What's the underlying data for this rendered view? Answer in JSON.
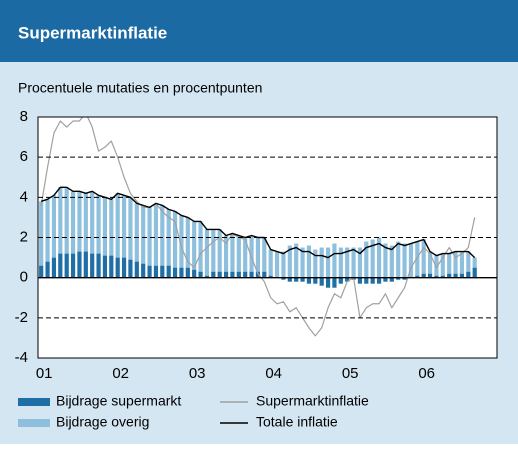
{
  "chart_data": {
    "type": "bar",
    "title": "Supermarktinflatie",
    "subtitle": "Procentuele mutaties en procentpunten",
    "stacked": true,
    "categories": [
      "01",
      null,
      null,
      null,
      null,
      null,
      null,
      null,
      null,
      null,
      null,
      null,
      "02",
      null,
      null,
      null,
      null,
      null,
      null,
      null,
      null,
      null,
      null,
      null,
      "03",
      null,
      null,
      null,
      null,
      null,
      null,
      null,
      null,
      null,
      null,
      null,
      "04",
      null,
      null,
      null,
      null,
      null,
      null,
      null,
      null,
      null,
      null,
      null,
      "05",
      null,
      null,
      null,
      null,
      null,
      null,
      null,
      null,
      null,
      null,
      null,
      "06",
      null,
      null,
      null,
      null,
      null,
      null,
      null,
      null
    ],
    "series": [
      {
        "name": "Bijdrage supermarkt",
        "type": "bar",
        "color": "#1f6ea6",
        "values": [
          0.6,
          0.8,
          1.0,
          1.2,
          1.2,
          1.2,
          1.3,
          1.3,
          1.2,
          1.2,
          1.1,
          1.1,
          1.0,
          1.0,
          0.9,
          0.8,
          0.7,
          0.6,
          0.6,
          0.6,
          0.6,
          0.5,
          0.5,
          0.5,
          0.4,
          0.3,
          0.1,
          0.3,
          0.3,
          0.3,
          0.3,
          0.3,
          0.3,
          0.3,
          0.3,
          0.3,
          0.1,
          0.0,
          -0.1,
          -0.2,
          -0.2,
          -0.2,
          -0.3,
          -0.3,
          -0.4,
          -0.5,
          -0.5,
          -0.3,
          -0.2,
          -0.1,
          -0.3,
          -0.3,
          -0.3,
          -0.3,
          -0.2,
          -0.2,
          -0.1,
          -0.1,
          0.0,
          0.1,
          0.2,
          0.2,
          0.1,
          0.1,
          0.2,
          0.2,
          0.2,
          0.3,
          0.5
        ]
      },
      {
        "name": "Bijdrage overig",
        "type": "bar",
        "color": "#8ec0de",
        "values": [
          3.2,
          3.1,
          3.1,
          3.3,
          3.3,
          3.1,
          3.0,
          2.9,
          3.1,
          2.9,
          2.9,
          2.8,
          3.2,
          3.1,
          3.1,
          2.9,
          2.9,
          2.9,
          3.1,
          3.0,
          2.8,
          2.8,
          2.6,
          2.5,
          2.4,
          2.5,
          2.3,
          2.1,
          2.1,
          1.8,
          1.9,
          1.8,
          1.7,
          1.8,
          1.7,
          1.7,
          1.3,
          1.3,
          1.3,
          1.6,
          1.7,
          1.5,
          1.6,
          1.4,
          1.5,
          1.5,
          1.7,
          1.5,
          1.5,
          1.5,
          1.5,
          1.8,
          1.9,
          2.0,
          1.7,
          1.6,
          1.8,
          1.7,
          1.7,
          1.7,
          1.7,
          1.1,
          1.0,
          1.1,
          1.0,
          1.1,
          1.1,
          1.0,
          0.5
        ]
      },
      {
        "name": "Supermarktinflatie",
        "type": "line",
        "color": "#a0a0a0",
        "values": [
          3.6,
          5.5,
          7.2,
          7.8,
          7.5,
          7.8,
          7.8,
          8.2,
          7.5,
          6.3,
          6.5,
          6.8,
          6.0,
          5.0,
          4.2,
          3.8,
          3.5,
          3.5,
          3.7,
          3.3,
          3.0,
          2.8,
          1.5,
          0.8,
          0.5,
          1.2,
          1.5,
          1.8,
          2.0,
          1.7,
          2.2,
          2.0,
          1.9,
          1.0,
          0.2,
          -0.2,
          -1.0,
          -1.3,
          -1.2,
          -1.7,
          -1.5,
          -2.0,
          -2.5,
          -2.9,
          -2.5,
          -1.5,
          -0.8,
          -1.0,
          -0.2,
          0.0,
          -2.0,
          -1.5,
          -1.3,
          -1.3,
          -0.8,
          -1.5,
          -1.0,
          -0.5,
          0.5,
          1.0,
          1.5,
          1.2,
          0.5,
          1.0,
          1.5,
          1.0,
          1.2,
          1.5,
          3.0
        ]
      },
      {
        "name": "Totale inflatie",
        "type": "line",
        "color": "#000000",
        "values": [
          3.8,
          3.9,
          4.1,
          4.5,
          4.5,
          4.3,
          4.3,
          4.2,
          4.3,
          4.1,
          4.0,
          3.9,
          4.2,
          4.1,
          4.0,
          3.7,
          3.6,
          3.5,
          3.7,
          3.6,
          3.4,
          3.3,
          3.1,
          3.0,
          2.8,
          2.8,
          2.4,
          2.4,
          2.4,
          2.1,
          2.2,
          2.1,
          2.0,
          2.1,
          2.0,
          2.0,
          1.4,
          1.3,
          1.2,
          1.4,
          1.5,
          1.3,
          1.3,
          1.1,
          1.1,
          1.0,
          1.2,
          1.2,
          1.3,
          1.4,
          1.2,
          1.5,
          1.6,
          1.7,
          1.5,
          1.4,
          1.7,
          1.6,
          1.7,
          1.8,
          1.9,
          1.3,
          1.1,
          1.2,
          1.2,
          1.3,
          1.3,
          1.3,
          1.0
        ]
      }
    ],
    "ylim": [
      -4,
      8
    ],
    "yticks": [
      -4,
      -2,
      0,
      2,
      4,
      6,
      8
    ],
    "grid": true,
    "legend": "bottom"
  }
}
